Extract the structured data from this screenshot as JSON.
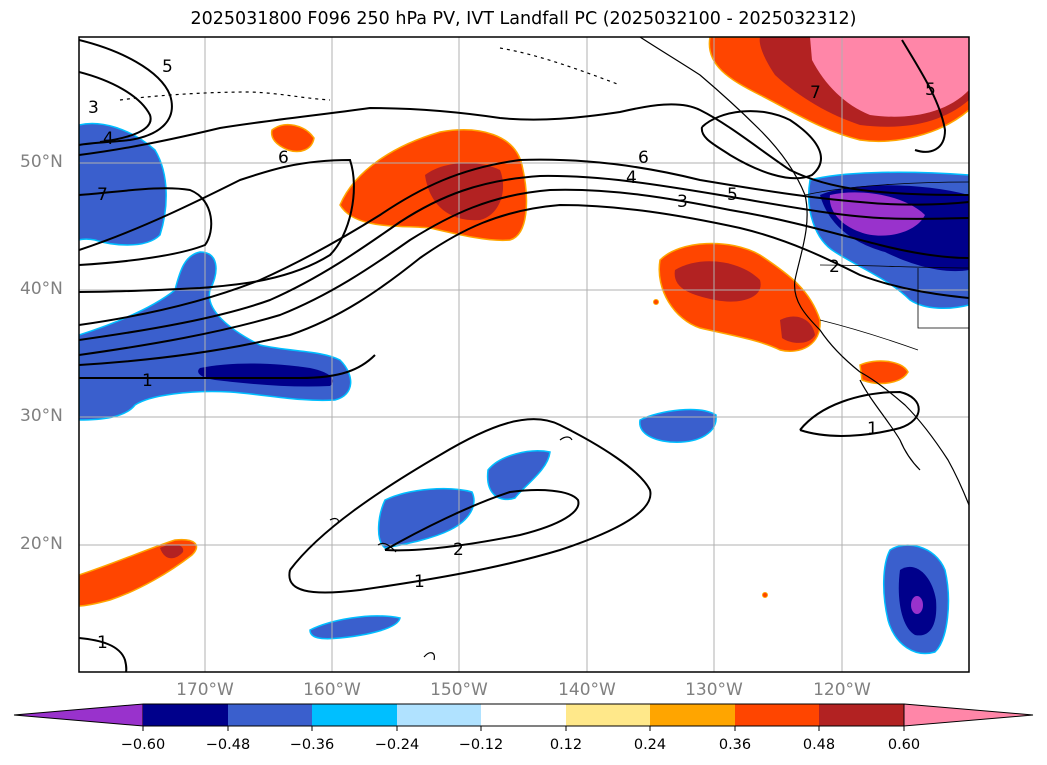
{
  "title": "2025031800 F096 250 hPa PV, IVT Landfall PC (2025032100 - 2025032312)",
  "map": {
    "lat_labels": [
      "50°N",
      "40°N",
      "30°N",
      "20°N"
    ],
    "lon_labels": [
      "170°W",
      "160°W",
      "150°W",
      "140°W",
      "130°W",
      "120°W"
    ],
    "contour_labels": [
      "5",
      "3",
      "4",
      "7",
      "6",
      "6",
      "4",
      "3",
      "5",
      "7",
      "5",
      "2",
      "1",
      "1",
      "2",
      "1",
      "1"
    ],
    "coastline_color": "#000000",
    "gridline_color": "#b0b0b0"
  },
  "colorbar": {
    "ticks": [
      "−0.60",
      "−0.48",
      "−0.36",
      "−0.24",
      "−0.12",
      "0.12",
      "0.24",
      "0.36",
      "0.48",
      "0.60"
    ],
    "colors": [
      "#9932cc",
      "#00008b",
      "#3a5fcd",
      "#00bfff",
      "#b0e2ff",
      "#ffffff",
      "#ffe88a",
      "#ffa500",
      "#ff4500",
      "#b22222",
      "#ff86a8"
    ]
  }
}
